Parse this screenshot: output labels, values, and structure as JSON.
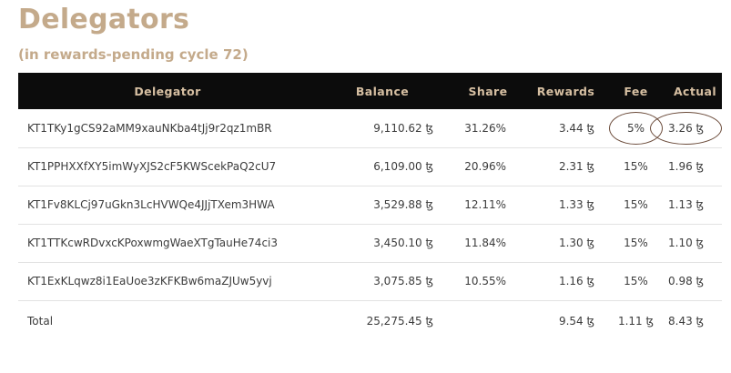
{
  "title": "Delegators",
  "subtitle": "(in rewards-pending cycle 72)",
  "headers": {
    "delegator": "Delegator",
    "balance": "Balance",
    "share": "Share",
    "rewards": "Rewards",
    "fee": "Fee",
    "actual": "Actual"
  },
  "rows": [
    {
      "delegator": "KT1TKy1gCS92aMM9xauNKba4tJj9r2qz1mBR",
      "balance": "9,110.62 ꜩ",
      "share": "31.26%",
      "rewards": "3.44 ꜩ",
      "fee": "5%",
      "actual": "3.26 ꜩ"
    },
    {
      "delegator": "KT1PPHXXfXY5imWyXJS2cF5KWScekPaQ2cU7",
      "balance": "6,109.00 ꜩ",
      "share": "20.96%",
      "rewards": "2.31 ꜩ",
      "fee": "15%",
      "actual": "1.96 ꜩ"
    },
    {
      "delegator": "KT1Fv8KLCj97uGkn3LcHVWQe4JJjTXem3HWA",
      "balance": "3,529.88 ꜩ",
      "share": "12.11%",
      "rewards": "1.33 ꜩ",
      "fee": "15%",
      "actual": "1.13 ꜩ"
    },
    {
      "delegator": "KT1TTKcwRDvxcKPoxwmgWaeXTgTauHe74ci3",
      "balance": "3,450.10 ꜩ",
      "share": "11.84%",
      "rewards": "1.30 ꜩ",
      "fee": "15%",
      "actual": "1.10 ꜩ"
    },
    {
      "delegator": "KT1ExKLqwz8i1EaUoe3zKFKBw6maZJUw5yvj",
      "balance": "3,075.85 ꜩ",
      "share": "10.55%",
      "rewards": "1.16 ꜩ",
      "fee": "15%",
      "actual": "0.98 ꜩ"
    }
  ],
  "total": {
    "label": "Total",
    "balance": "25,275.45 ꜩ",
    "rewards": "9.54 ꜩ",
    "fee": "1.11 ꜩ",
    "actual": "8.43 ꜩ"
  },
  "colors": {
    "title": "#c4aa8b",
    "header_bg": "#0c0c0c",
    "header_text": "#d6bfa2",
    "circle": "#6b4b3a"
  }
}
